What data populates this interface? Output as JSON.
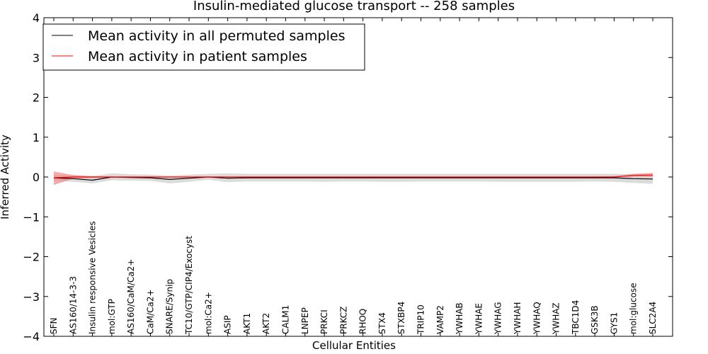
{
  "chart_data": {
    "type": "line",
    "title": "Insulin-mediated glucose transport -- 258 samples",
    "xlabel": "Cellular Entities",
    "ylabel": "Inferred Activity",
    "ylim": [
      -4,
      4
    ],
    "yticks": [
      4,
      3,
      2,
      1,
      0,
      -1,
      -2,
      -3,
      -4
    ],
    "ytick_labels": [
      "4",
      "3",
      "2",
      "1",
      "0",
      "−1",
      "−2",
      "−3",
      "−4"
    ],
    "grid": false,
    "legend_position": "top-left",
    "categories": [
      "SFN",
      "AS160/14-3-3",
      "Insulin responsive Vesicles",
      "mol:GTP",
      "AS160/CaM/Ca2+",
      "CaM/Ca2+",
      "SNARE/Synip",
      "TC10/GTP/CIP4/Exocyst",
      "mol:Ca2+",
      "ASIP",
      "AKT1",
      "AKT2",
      "CALM1",
      "LNPEP",
      "PRKCI",
      "PRKCZ",
      "RHOQ",
      "STX4",
      "STXBP4",
      "TRIP10",
      "VAMP2",
      "YWHAB",
      "YWHAE",
      "YWHAG",
      "YWHAH",
      "YWHAQ",
      "YWHAZ",
      "TBC1D4",
      "GSK3B",
      "GYS1",
      "mol:glucose",
      "SLC2A4"
    ],
    "series": [
      {
        "name": "Mean activity in all permuted samples",
        "color": "#000000",
        "band_color": "#cccccc",
        "values": [
          -0.02,
          -0.04,
          -0.08,
          0.0,
          -0.01,
          -0.02,
          -0.06,
          -0.03,
          0.0,
          -0.03,
          -0.02,
          -0.02,
          -0.02,
          -0.02,
          -0.02,
          -0.02,
          -0.02,
          -0.02,
          -0.02,
          -0.02,
          -0.02,
          -0.02,
          -0.02,
          -0.02,
          -0.02,
          -0.02,
          -0.02,
          -0.02,
          -0.02,
          -0.02,
          -0.04,
          -0.05
        ],
        "band_low": [
          -0.1,
          -0.12,
          -0.16,
          -0.08,
          -0.09,
          -0.1,
          -0.16,
          -0.12,
          -0.07,
          -0.13,
          -0.11,
          -0.11,
          -0.11,
          -0.11,
          -0.12,
          -0.11,
          -0.11,
          -0.12,
          -0.12,
          -0.11,
          -0.11,
          -0.11,
          -0.11,
          -0.12,
          -0.12,
          -0.12,
          -0.12,
          -0.12,
          -0.11,
          -0.12,
          -0.15,
          -0.17
        ],
        "band_high": [
          0.05,
          0.04,
          0.02,
          0.09,
          0.07,
          0.06,
          0.03,
          0.06,
          0.08,
          0.09,
          0.08,
          0.08,
          0.08,
          0.08,
          0.08,
          0.08,
          0.08,
          0.08,
          0.08,
          0.08,
          0.08,
          0.08,
          0.08,
          0.08,
          0.08,
          0.08,
          0.08,
          0.08,
          0.08,
          0.08,
          0.07,
          0.06
        ]
      },
      {
        "name": "Mean activity in patient samples",
        "color": "#ff0000",
        "band_color": "#f08080",
        "values": [
          -0.02,
          0.0,
          0.0,
          0.0,
          0.0,
          0.0,
          0.0,
          0.0,
          0.0,
          0.0,
          0.0,
          0.0,
          0.0,
          0.0,
          0.0,
          0.0,
          0.0,
          0.0,
          0.0,
          0.0,
          0.0,
          0.0,
          0.0,
          0.0,
          0.0,
          0.0,
          0.0,
          0.0,
          0.0,
          0.0,
          0.04,
          0.05
        ],
        "band_low": [
          -0.2,
          -0.04,
          -0.02,
          -0.01,
          -0.01,
          -0.01,
          -0.01,
          -0.01,
          -0.01,
          -0.01,
          -0.01,
          -0.01,
          -0.01,
          -0.01,
          -0.01,
          -0.01,
          -0.01,
          -0.01,
          -0.01,
          -0.01,
          -0.01,
          -0.01,
          -0.01,
          -0.01,
          -0.01,
          -0.01,
          -0.01,
          -0.01,
          -0.01,
          0.0,
          0.01,
          0.0
        ],
        "band_high": [
          0.14,
          0.05,
          0.02,
          0.01,
          0.01,
          0.01,
          0.01,
          0.01,
          0.01,
          0.01,
          0.01,
          0.01,
          0.01,
          0.01,
          0.01,
          0.01,
          0.01,
          0.01,
          0.01,
          0.01,
          0.01,
          0.01,
          0.01,
          0.01,
          0.01,
          0.01,
          0.01,
          0.01,
          0.01,
          0.02,
          0.08,
          0.1
        ]
      }
    ]
  }
}
